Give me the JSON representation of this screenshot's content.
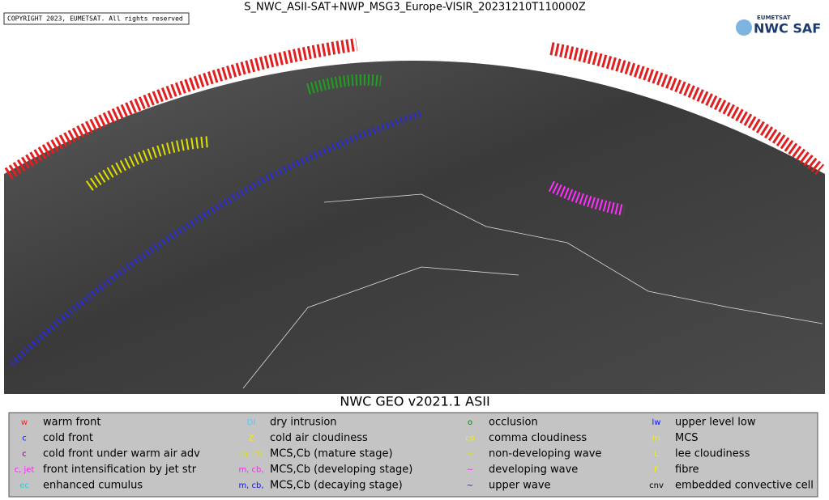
{
  "header": {
    "title": "S_NWC_ASII-SAT+NWP_MSG3_Europe-VISIR_20231210T110000Z",
    "copyright": "COPYRIGHT 2023, EUMETSAT. All rights reserved",
    "logo_small": "EUMETSAT",
    "logo_big": "NWC SAF"
  },
  "subtitle": "NWC GEO v2021.1 ASII",
  "legend": [
    [
      {
        "symbol": "w",
        "color": "#ff2020",
        "label": "warm front"
      },
      {
        "symbol": "c",
        "color": "#1010ff",
        "label": "cold front"
      },
      {
        "symbol": "c",
        "color": "#800080",
        "label": "cold front under warm air adv"
      },
      {
        "symbol": "c, jet",
        "color": "#ff20ff",
        "label": "front intensification by jet str"
      },
      {
        "symbol": "ec",
        "color": "#20d0e0",
        "label": "enhanced cumulus"
      }
    ],
    [
      {
        "symbol": "DI",
        "color": "#60c0ff",
        "label": "dry intrusion"
      },
      {
        "symbol": "Z",
        "color": "#f0f000",
        "label": "cold air cloudiness"
      },
      {
        "symbol": "m, cb",
        "color": "#e0e000",
        "label": "MCS,Cb (mature stage)"
      },
      {
        "symbol": "m, cb,",
        "color": "#ff20ff",
        "label": "MCS,Cb (developing stage)"
      },
      {
        "symbol": "m, cb,",
        "color": "#1010ff",
        "label": "MCS,Cb (decaying stage)"
      }
    ],
    [
      {
        "symbol": "o",
        "color": "#108010",
        "label": "occlusion"
      },
      {
        "symbol": "co",
        "color": "#f0f000",
        "label": "comma cloudiness"
      },
      {
        "symbol": "~",
        "color": "#e0e000",
        "label": "non-developing wave"
      },
      {
        "symbol": "~",
        "color": "#ff20ff",
        "label": "developing wave"
      },
      {
        "symbol": "~",
        "color": "#1010ff",
        "label": "upper wave"
      }
    ],
    [
      {
        "symbol": "lw",
        "color": "#1010ff",
        "label": "upper level low"
      },
      {
        "symbol": "m",
        "color": "#f0f000",
        "label": "MCS"
      },
      {
        "symbol": "L",
        "color": "#f0f000",
        "label": "lee cloudiness"
      },
      {
        "symbol": "F",
        "color": "#f0f000",
        "label": "fibre"
      },
      {
        "symbol": "cnv",
        "color": "#000000",
        "label": "embedded convective cell"
      }
    ]
  ]
}
